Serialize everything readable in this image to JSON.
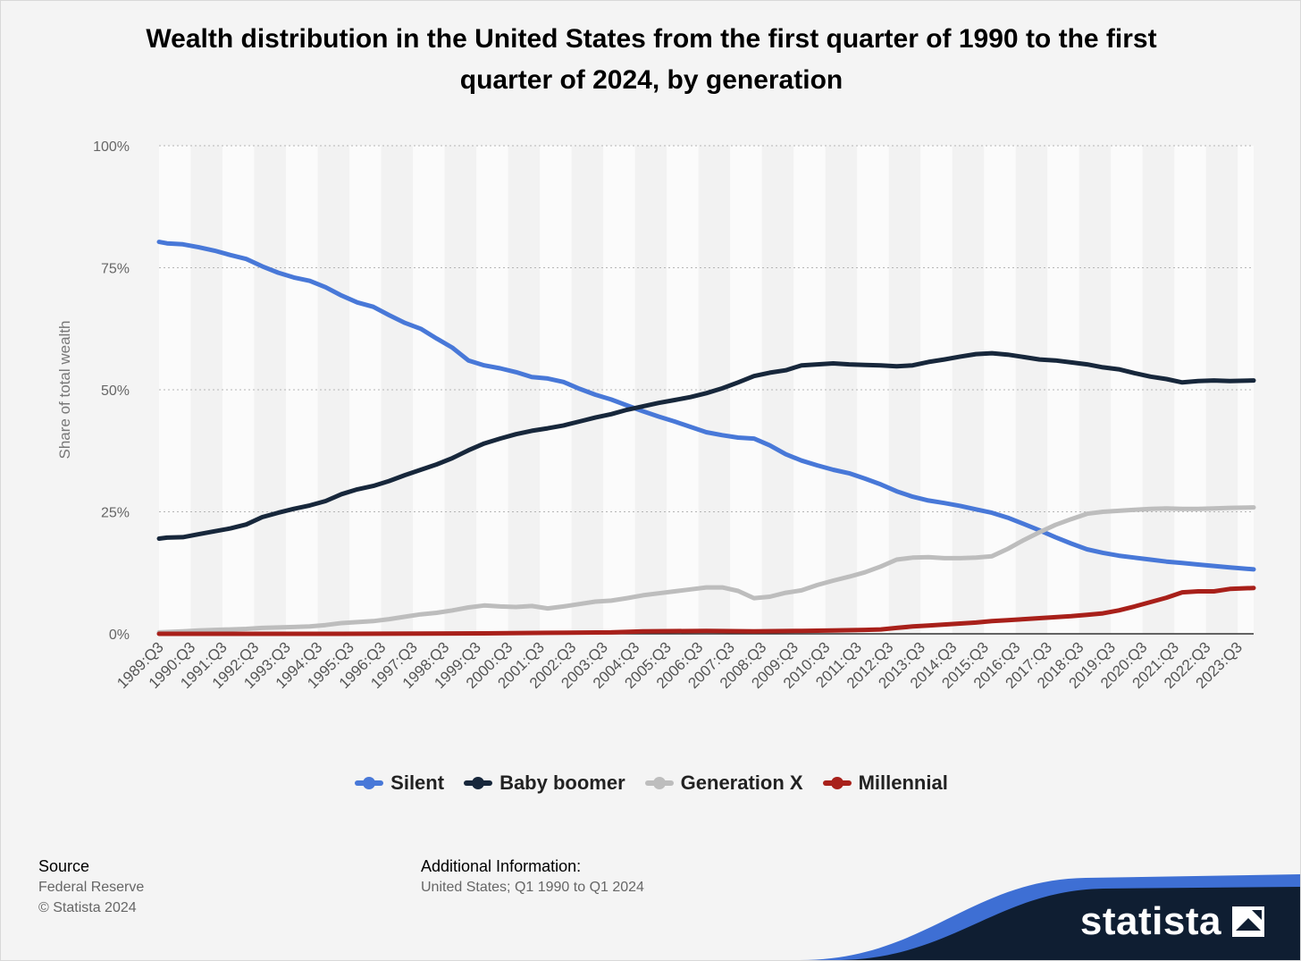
{
  "chart_data": {
    "type": "line",
    "title": "Wealth distribution in the United States from the first quarter of 1990 to the first quarter of 2024, by generation",
    "ylabel": "Share of total wealth",
    "ylim": [
      0,
      100
    ],
    "yticks": [
      0,
      25,
      50,
      75,
      100
    ],
    "ytick_labels": [
      "0%",
      "25%",
      "50%",
      "75%",
      "100%"
    ],
    "x_range": [
      1989.75,
      2024.25
    ],
    "x_tick_values": [
      1989.75,
      1990.75,
      1991.75,
      1992.75,
      1993.75,
      1994.75,
      1995.75,
      1996.75,
      1997.75,
      1998.75,
      1999.75,
      2000.75,
      2001.75,
      2002.75,
      2003.75,
      2004.75,
      2005.75,
      2006.75,
      2007.75,
      2008.75,
      2009.75,
      2010.75,
      2011.75,
      2012.75,
      2013.75,
      2014.75,
      2015.75,
      2016.75,
      2017.75,
      2018.75,
      2019.75,
      2020.75,
      2021.75,
      2022.75,
      2023.75
    ],
    "x_tick_labels": [
      "1989:Q3",
      "1990:Q3",
      "1991:Q3",
      "1992:Q3",
      "1993:Q3",
      "1994:Q3",
      "1995:Q3",
      "1996:Q3",
      "1997:Q3",
      "1998:Q3",
      "1999:Q3",
      "2000:Q3",
      "2001:Q3",
      "2002:Q3",
      "2003:Q3",
      "2004:Q3",
      "2005:Q3",
      "2006:Q3",
      "2007:Q3",
      "2008:Q3",
      "2009:Q3",
      "2010:Q3",
      "2011:Q3",
      "2012:Q3",
      "2013:Q3",
      "2014:Q3",
      "2015:Q3",
      "2016:Q3",
      "2017:Q3",
      "2018:Q3",
      "2019:Q3",
      "2020:Q3",
      "2021:Q3",
      "2022:Q3",
      "2023:Q3"
    ],
    "grid": true,
    "legend_position": "bottom-center",
    "series": [
      {
        "name": "Silent",
        "color": "#4878d8",
        "points": [
          [
            1989.75,
            80.3
          ],
          [
            1990.0,
            80.0
          ],
          [
            1990.5,
            79.8
          ],
          [
            1991.0,
            79.2
          ],
          [
            1991.5,
            78.5
          ],
          [
            1992.0,
            77.6
          ],
          [
            1992.5,
            76.8
          ],
          [
            1993.0,
            75.3
          ],
          [
            1993.5,
            74.0
          ],
          [
            1994.0,
            73.0
          ],
          [
            1994.5,
            72.3
          ],
          [
            1995.0,
            71.0
          ],
          [
            1995.5,
            69.3
          ],
          [
            1996.0,
            67.9
          ],
          [
            1996.5,
            67.0
          ],
          [
            1997.0,
            65.3
          ],
          [
            1997.5,
            63.7
          ],
          [
            1998.0,
            62.5
          ],
          [
            1998.5,
            60.5
          ],
          [
            1999.0,
            58.6
          ],
          [
            1999.5,
            56.0
          ],
          [
            2000.0,
            55.0
          ],
          [
            2000.5,
            54.4
          ],
          [
            2001.0,
            53.6
          ],
          [
            2001.5,
            52.6
          ],
          [
            2002.0,
            52.3
          ],
          [
            2002.5,
            51.6
          ],
          [
            2003.0,
            50.2
          ],
          [
            2003.5,
            49.0
          ],
          [
            2004.0,
            48.0
          ],
          [
            2004.5,
            46.8
          ],
          [
            2005.0,
            45.6
          ],
          [
            2005.5,
            44.5
          ],
          [
            2006.0,
            43.5
          ],
          [
            2006.5,
            42.4
          ],
          [
            2007.0,
            41.3
          ],
          [
            2007.5,
            40.7
          ],
          [
            2008.0,
            40.2
          ],
          [
            2008.5,
            40.0
          ],
          [
            2009.0,
            38.6
          ],
          [
            2009.5,
            36.8
          ],
          [
            2010.0,
            35.5
          ],
          [
            2010.5,
            34.5
          ],
          [
            2011.0,
            33.6
          ],
          [
            2011.5,
            32.9
          ],
          [
            2012.0,
            31.8
          ],
          [
            2012.5,
            30.6
          ],
          [
            2013.0,
            29.2
          ],
          [
            2013.5,
            28.1
          ],
          [
            2014.0,
            27.3
          ],
          [
            2014.5,
            26.8
          ],
          [
            2015.0,
            26.2
          ],
          [
            2015.5,
            25.5
          ],
          [
            2016.0,
            24.8
          ],
          [
            2016.5,
            23.8
          ],
          [
            2017.0,
            22.5
          ],
          [
            2017.5,
            21.2
          ],
          [
            2018.0,
            19.8
          ],
          [
            2018.5,
            18.5
          ],
          [
            2019.0,
            17.3
          ],
          [
            2019.5,
            16.6
          ],
          [
            2020.0,
            16.0
          ],
          [
            2020.5,
            15.6
          ],
          [
            2021.0,
            15.2
          ],
          [
            2021.5,
            14.8
          ],
          [
            2022.0,
            14.5
          ],
          [
            2022.5,
            14.2
          ],
          [
            2023.0,
            13.9
          ],
          [
            2023.5,
            13.6
          ],
          [
            2024.25,
            13.2
          ]
        ]
      },
      {
        "name": "Baby boomer",
        "color": "#17273b",
        "points": [
          [
            1989.75,
            19.5
          ],
          [
            1990.0,
            19.7
          ],
          [
            1990.5,
            19.8
          ],
          [
            1991.0,
            20.4
          ],
          [
            1991.5,
            21.0
          ],
          [
            1992.0,
            21.6
          ],
          [
            1992.5,
            22.4
          ],
          [
            1993.0,
            23.9
          ],
          [
            1993.5,
            24.8
          ],
          [
            1994.0,
            25.6
          ],
          [
            1994.5,
            26.3
          ],
          [
            1995.0,
            27.2
          ],
          [
            1995.5,
            28.6
          ],
          [
            1996.0,
            29.6
          ],
          [
            1996.5,
            30.3
          ],
          [
            1997.0,
            31.3
          ],
          [
            1997.5,
            32.5
          ],
          [
            1998.0,
            33.6
          ],
          [
            1998.5,
            34.7
          ],
          [
            1999.0,
            36.0
          ],
          [
            1999.5,
            37.6
          ],
          [
            2000.0,
            39.0
          ],
          [
            2000.5,
            40.0
          ],
          [
            2001.0,
            40.9
          ],
          [
            2001.5,
            41.6
          ],
          [
            2002.0,
            42.1
          ],
          [
            2002.5,
            42.7
          ],
          [
            2003.0,
            43.5
          ],
          [
            2003.5,
            44.3
          ],
          [
            2004.0,
            45.0
          ],
          [
            2004.5,
            45.9
          ],
          [
            2005.0,
            46.6
          ],
          [
            2005.5,
            47.3
          ],
          [
            2006.0,
            47.9
          ],
          [
            2006.5,
            48.5
          ],
          [
            2007.0,
            49.3
          ],
          [
            2007.5,
            50.3
          ],
          [
            2008.0,
            51.5
          ],
          [
            2008.5,
            52.8
          ],
          [
            2009.0,
            53.5
          ],
          [
            2009.5,
            54.0
          ],
          [
            2010.0,
            55.0
          ],
          [
            2010.5,
            55.2
          ],
          [
            2011.0,
            55.4
          ],
          [
            2011.5,
            55.2
          ],
          [
            2012.0,
            55.1
          ],
          [
            2012.5,
            55.0
          ],
          [
            2013.0,
            54.8
          ],
          [
            2013.5,
            55.0
          ],
          [
            2014.0,
            55.7
          ],
          [
            2014.5,
            56.2
          ],
          [
            2015.0,
            56.8
          ],
          [
            2015.5,
            57.3
          ],
          [
            2016.0,
            57.5
          ],
          [
            2016.5,
            57.2
          ],
          [
            2017.0,
            56.7
          ],
          [
            2017.5,
            56.2
          ],
          [
            2018.0,
            56.0
          ],
          [
            2018.5,
            55.6
          ],
          [
            2019.0,
            55.2
          ],
          [
            2019.5,
            54.6
          ],
          [
            2020.0,
            54.2
          ],
          [
            2020.5,
            53.4
          ],
          [
            2021.0,
            52.7
          ],
          [
            2021.5,
            52.2
          ],
          [
            2022.0,
            51.5
          ],
          [
            2022.5,
            51.8
          ],
          [
            2023.0,
            51.9
          ],
          [
            2023.5,
            51.8
          ],
          [
            2024.25,
            51.9
          ]
        ]
      },
      {
        "name": "Generation X",
        "color": "#bdbdbd",
        "points": [
          [
            1989.75,
            0.3
          ],
          [
            1990.5,
            0.5
          ],
          [
            1991.0,
            0.7
          ],
          [
            1991.5,
            0.8
          ],
          [
            1992.0,
            0.9
          ],
          [
            1992.5,
            1.0
          ],
          [
            1993.0,
            1.2
          ],
          [
            1993.5,
            1.3
          ],
          [
            1994.0,
            1.4
          ],
          [
            1994.5,
            1.5
          ],
          [
            1995.0,
            1.8
          ],
          [
            1995.5,
            2.2
          ],
          [
            1996.0,
            2.4
          ],
          [
            1996.5,
            2.6
          ],
          [
            1997.0,
            3.0
          ],
          [
            1997.5,
            3.5
          ],
          [
            1998.0,
            4.0
          ],
          [
            1998.5,
            4.3
          ],
          [
            1999.0,
            4.8
          ],
          [
            1999.5,
            5.4
          ],
          [
            2000.0,
            5.8
          ],
          [
            2000.5,
            5.6
          ],
          [
            2001.0,
            5.5
          ],
          [
            2001.5,
            5.7
          ],
          [
            2002.0,
            5.2
          ],
          [
            2002.5,
            5.6
          ],
          [
            2003.0,
            6.1
          ],
          [
            2003.5,
            6.6
          ],
          [
            2004.0,
            6.8
          ],
          [
            2004.5,
            7.3
          ],
          [
            2005.0,
            7.9
          ],
          [
            2005.5,
            8.3
          ],
          [
            2006.0,
            8.7
          ],
          [
            2006.5,
            9.1
          ],
          [
            2007.0,
            9.5
          ],
          [
            2007.5,
            9.5
          ],
          [
            2008.0,
            8.8
          ],
          [
            2008.5,
            7.3
          ],
          [
            2009.0,
            7.6
          ],
          [
            2009.5,
            8.4
          ],
          [
            2010.0,
            8.9
          ],
          [
            2010.5,
            10.0
          ],
          [
            2011.0,
            10.9
          ],
          [
            2011.5,
            11.7
          ],
          [
            2012.0,
            12.6
          ],
          [
            2012.5,
            13.8
          ],
          [
            2013.0,
            15.2
          ],
          [
            2013.5,
            15.6
          ],
          [
            2014.0,
            15.7
          ],
          [
            2014.5,
            15.5
          ],
          [
            2015.0,
            15.5
          ],
          [
            2015.5,
            15.6
          ],
          [
            2016.0,
            15.9
          ],
          [
            2016.5,
            17.4
          ],
          [
            2017.0,
            19.2
          ],
          [
            2017.5,
            20.8
          ],
          [
            2018.0,
            22.3
          ],
          [
            2018.5,
            23.5
          ],
          [
            2019.0,
            24.6
          ],
          [
            2019.5,
            25.0
          ],
          [
            2020.0,
            25.2
          ],
          [
            2020.5,
            25.4
          ],
          [
            2021.0,
            25.6
          ],
          [
            2021.5,
            25.7
          ],
          [
            2022.0,
            25.6
          ],
          [
            2022.5,
            25.6
          ],
          [
            2023.0,
            25.7
          ],
          [
            2023.5,
            25.8
          ],
          [
            2024.25,
            25.9
          ]
        ]
      },
      {
        "name": "Millennial",
        "color": "#a8201a",
        "points": [
          [
            1989.75,
            0.0
          ],
          [
            1995.0,
            0.0
          ],
          [
            2000.0,
            0.1
          ],
          [
            2002.0,
            0.2
          ],
          [
            2004.0,
            0.3
          ],
          [
            2005.0,
            0.5
          ],
          [
            2007.0,
            0.6
          ],
          [
            2008.5,
            0.5
          ],
          [
            2010.0,
            0.6
          ],
          [
            2011.0,
            0.7
          ],
          [
            2012.0,
            0.8
          ],
          [
            2012.5,
            0.9
          ],
          [
            2013.0,
            1.2
          ],
          [
            2013.5,
            1.5
          ],
          [
            2014.0,
            1.7
          ],
          [
            2014.5,
            1.9
          ],
          [
            2015.0,
            2.1
          ],
          [
            2015.5,
            2.3
          ],
          [
            2016.0,
            2.6
          ],
          [
            2016.5,
            2.8
          ],
          [
            2017.0,
            3.0
          ],
          [
            2017.5,
            3.2
          ],
          [
            2018.0,
            3.4
          ],
          [
            2018.5,
            3.6
          ],
          [
            2019.0,
            3.9
          ],
          [
            2019.5,
            4.2
          ],
          [
            2020.0,
            4.8
          ],
          [
            2020.5,
            5.6
          ],
          [
            2021.0,
            6.5
          ],
          [
            2021.5,
            7.4
          ],
          [
            2022.0,
            8.5
          ],
          [
            2022.5,
            8.7
          ],
          [
            2023.0,
            8.7
          ],
          [
            2023.5,
            9.2
          ],
          [
            2024.25,
            9.4
          ]
        ]
      }
    ]
  },
  "footer": {
    "source_heading": "Source",
    "source_text": "Federal Reserve",
    "copyright": "© Statista 2024",
    "additional_heading": "Additional Information:",
    "additional_text": "United States; Q1 1990 to Q1 2024"
  },
  "brand": {
    "name": "statista",
    "colors": {
      "dark": "#0f1e32",
      "blue": "#3e6fd4"
    }
  }
}
